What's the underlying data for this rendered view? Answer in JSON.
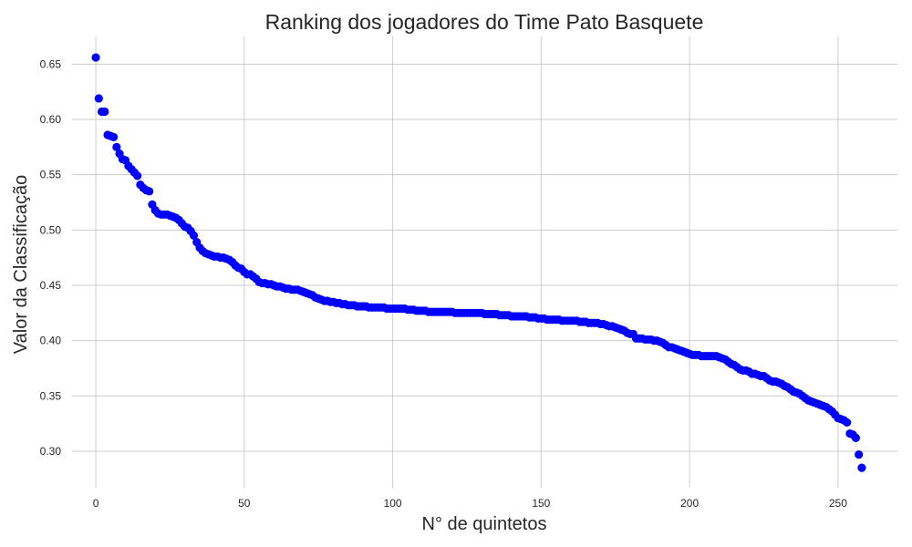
{
  "chart_data": {
    "type": "scatter",
    "title": "Ranking dos jogadores do Time Pato Basquete",
    "xlabel": "N° de quintetos",
    "ylabel": "Valor da Classificação",
    "xlim": [
      -8,
      270
    ],
    "ylim": [
      0.267,
      0.675
    ],
    "x_ticks": [
      0,
      50,
      100,
      150,
      200,
      250
    ],
    "y_ticks": [
      0.3,
      0.35,
      0.4,
      0.45,
      0.5,
      0.55,
      0.6,
      0.65
    ],
    "grid": true,
    "series": [
      {
        "color": "#0000ff",
        "x_start": 0,
        "values": [
          0.656,
          0.619,
          0.607,
          0.607,
          0.586,
          0.585,
          0.584,
          0.575,
          0.569,
          0.564,
          0.563,
          0.558,
          0.555,
          0.552,
          0.549,
          0.541,
          0.538,
          0.536,
          0.535,
          0.523,
          0.518,
          0.515,
          0.514,
          0.514,
          0.514,
          0.513,
          0.512,
          0.511,
          0.509,
          0.506,
          0.503,
          0.502,
          0.499,
          0.495,
          0.489,
          0.484,
          0.481,
          0.479,
          0.478,
          0.477,
          0.476,
          0.476,
          0.475,
          0.475,
          0.474,
          0.473,
          0.471,
          0.468,
          0.466,
          0.465,
          0.462,
          0.46,
          0.46,
          0.458,
          0.456,
          0.453,
          0.452,
          0.452,
          0.451,
          0.451,
          0.45,
          0.449,
          0.449,
          0.448,
          0.447,
          0.447,
          0.446,
          0.446,
          0.446,
          0.445,
          0.444,
          0.443,
          0.442,
          0.441,
          0.439,
          0.438,
          0.437,
          0.436,
          0.436,
          0.435,
          0.435,
          0.434,
          0.434,
          0.433,
          0.433,
          0.432,
          0.432,
          0.432,
          0.431,
          0.431,
          0.431,
          0.431,
          0.43,
          0.43,
          0.43,
          0.43,
          0.43,
          0.43,
          0.429,
          0.429,
          0.429,
          0.429,
          0.429,
          0.429,
          0.429,
          0.428,
          0.428,
          0.428,
          0.427,
          0.427,
          0.427,
          0.427,
          0.426,
          0.426,
          0.426,
          0.426,
          0.426,
          0.426,
          0.426,
          0.426,
          0.426,
          0.425,
          0.425,
          0.425,
          0.425,
          0.425,
          0.425,
          0.425,
          0.425,
          0.425,
          0.425,
          0.424,
          0.424,
          0.424,
          0.424,
          0.424,
          0.423,
          0.423,
          0.423,
          0.423,
          0.422,
          0.422,
          0.422,
          0.422,
          0.422,
          0.422,
          0.421,
          0.421,
          0.421,
          0.42,
          0.42,
          0.42,
          0.419,
          0.419,
          0.419,
          0.419,
          0.419,
          0.418,
          0.418,
          0.418,
          0.418,
          0.418,
          0.418,
          0.417,
          0.417,
          0.417,
          0.416,
          0.416,
          0.416,
          0.416,
          0.415,
          0.415,
          0.414,
          0.413,
          0.413,
          0.412,
          0.411,
          0.41,
          0.409,
          0.407,
          0.406,
          0.406,
          0.402,
          0.402,
          0.402,
          0.401,
          0.401,
          0.401,
          0.4,
          0.4,
          0.399,
          0.398,
          0.396,
          0.394,
          0.394,
          0.393,
          0.392,
          0.391,
          0.39,
          0.389,
          0.388,
          0.387,
          0.387,
          0.387,
          0.386,
          0.386,
          0.386,
          0.386,
          0.386,
          0.386,
          0.385,
          0.384,
          0.383,
          0.381,
          0.379,
          0.378,
          0.376,
          0.374,
          0.373,
          0.373,
          0.372,
          0.37,
          0.37,
          0.369,
          0.368,
          0.368,
          0.366,
          0.364,
          0.363,
          0.363,
          0.362,
          0.361,
          0.359,
          0.358,
          0.356,
          0.354,
          0.353,
          0.352,
          0.35,
          0.348,
          0.346,
          0.345,
          0.344,
          0.343,
          0.342,
          0.341,
          0.34,
          0.338,
          0.336,
          0.333,
          0.33,
          0.329,
          0.328,
          0.326,
          0.316,
          0.315,
          0.312,
          0.297,
          0.285
        ]
      }
    ]
  }
}
